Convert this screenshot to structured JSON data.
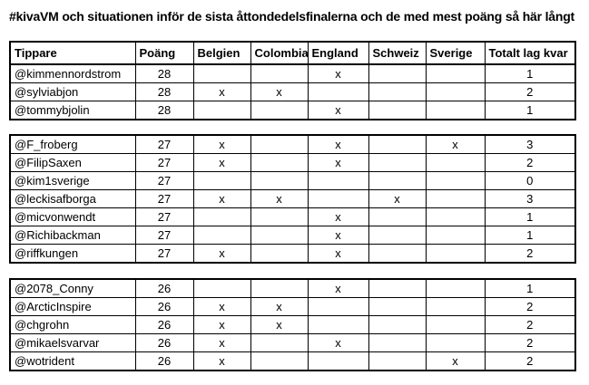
{
  "title": "#kivaVM och situationen inför de sista åttondedelsfinalerna och de med mest poäng så här långt",
  "table": {
    "columns": [
      "Tippare",
      "Poäng",
      "Belgien",
      "Colombia",
      "England",
      "Schweiz",
      "Sverige",
      "Totalt lag kvar"
    ],
    "mark": "x",
    "sections": [
      {
        "name": "group-28-points",
        "rows": [
          [
            "@kimmennordstrom",
            "28",
            "",
            "",
            "x",
            "",
            "",
            "1"
          ],
          [
            "@sylviabjon",
            "28",
            "x",
            "x",
            "",
            "",
            "",
            "2"
          ],
          [
            "@tommybjolin",
            "28",
            "",
            "",
            "x",
            "",
            "",
            "1"
          ]
        ]
      },
      {
        "name": "group-27-points",
        "rows": [
          [
            "@F_froberg",
            "27",
            "x",
            "",
            "x",
            "",
            "x",
            "3"
          ],
          [
            "@FilipSaxen",
            "27",
            "x",
            "",
            "x",
            "",
            "",
            "2"
          ],
          [
            "@kim1sverige",
            "27",
            "",
            "",
            "",
            "",
            "",
            "0"
          ],
          [
            "@leckisafborga",
            "27",
            "x",
            "x",
            "",
            "x",
            "",
            "3"
          ],
          [
            "@micvonwendt",
            "27",
            "",
            "",
            "x",
            "",
            "",
            "1"
          ],
          [
            "@Richibackman",
            "27",
            "",
            "",
            "x",
            "",
            "",
            "1"
          ],
          [
            "@riffkungen",
            "27",
            "x",
            "",
            "x",
            "",
            "",
            "2"
          ]
        ]
      },
      {
        "name": "group-26-points",
        "rows": [
          [
            "@2078_Conny",
            "26",
            "",
            "",
            "x",
            "",
            "",
            "1"
          ],
          [
            "@ArcticInspire",
            "26",
            "x",
            "x",
            "",
            "",
            "",
            "2"
          ],
          [
            "@chgrohn",
            "26",
            "x",
            "x",
            "",
            "",
            "",
            "2"
          ],
          [
            "@mikaelsvarvar",
            "26",
            "x",
            "",
            "x",
            "",
            "",
            "2"
          ],
          [
            "@wotrident",
            "26",
            "x",
            "",
            "",
            "",
            "x",
            "2"
          ]
        ]
      }
    ]
  }
}
